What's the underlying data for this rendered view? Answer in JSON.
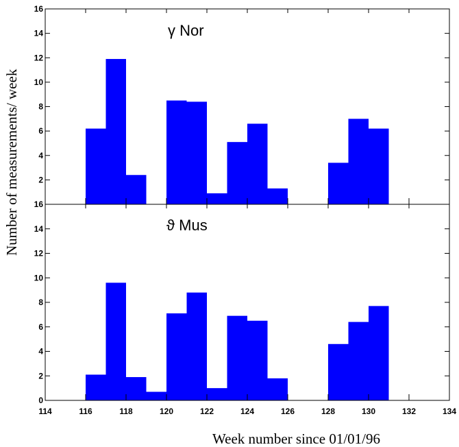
{
  "chart_data": [
    {
      "type": "bar",
      "label": "γ Nor",
      "x_bins": [
        116,
        117,
        118,
        120,
        121,
        122,
        123,
        124,
        125,
        128,
        129,
        130
      ],
      "values": [
        6.2,
        11.9,
        2.4,
        8.5,
        8.4,
        0.9,
        5.1,
        6.6,
        1.3,
        3.4,
        7.0,
        6.2
      ],
      "ylim": [
        0,
        16
      ],
      "yticks": [
        "2",
        "4",
        "6",
        "8",
        "10",
        "12",
        "14",
        "16"
      ],
      "color": "#0000ff"
    },
    {
      "type": "bar",
      "label": "ϑ Mus",
      "x_bins": [
        116,
        117,
        118,
        119,
        120,
        121,
        122,
        123,
        124,
        125,
        128,
        129,
        130
      ],
      "values": [
        2.1,
        9.6,
        1.9,
        0.7,
        7.1,
        8.8,
        1.0,
        6.9,
        6.5,
        1.8,
        4.6,
        6.4,
        7.7
      ],
      "ylim": [
        0,
        16
      ],
      "yticks": [
        "0",
        "2",
        "4",
        "6",
        "8",
        "10",
        "12",
        "14",
        "16"
      ],
      "color": "#0000ff"
    }
  ],
  "xaxis": {
    "range": [
      114,
      134
    ],
    "ticks": [
      "114",
      "116",
      "118",
      "120",
      "122",
      "124",
      "126",
      "128",
      "130",
      "132",
      "134"
    ],
    "label": "Week number since 01/01/96"
  },
  "yaxis": {
    "label": "Number of measurements/ week"
  }
}
